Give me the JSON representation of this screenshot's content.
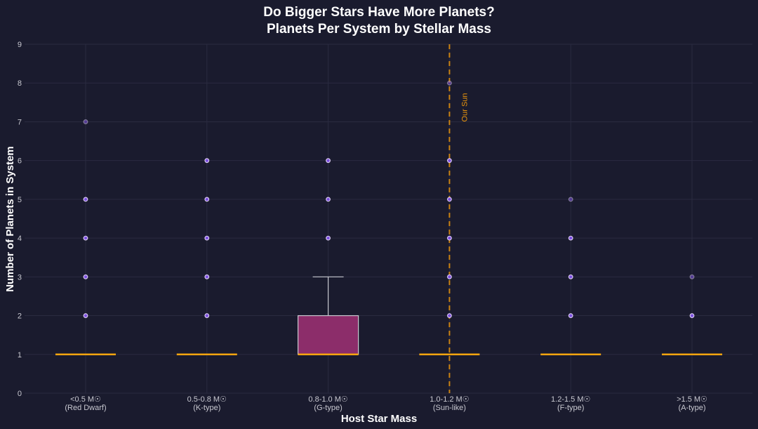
{
  "chart_data": {
    "type": "box",
    "title_lines": [
      "Do Bigger Stars Have More Planets?",
      "Planets Per System by Stellar Mass"
    ],
    "xlabel": "Host Star Mass",
    "ylabel": "Number of Planets in System",
    "ylim": [
      0,
      9
    ],
    "yticks": [
      "0",
      "1",
      "2",
      "3",
      "4",
      "5",
      "6",
      "7",
      "8",
      "9"
    ],
    "grid": true,
    "categories": [
      {
        "line1": "<0.5 M☉",
        "line2": "(Red Dwarf)"
      },
      {
        "line1": "0.5-0.8 M☉",
        "line2": "(K-type)"
      },
      {
        "line1": "0.8-1.0 M☉",
        "line2": "(G-type)"
      },
      {
        "line1": "1.0-1.2 M☉",
        "line2": "(Sun-like)"
      },
      {
        "line1": "1.2-1.5 M☉",
        "line2": "(F-type)"
      },
      {
        "line1": ">1.5 M☉",
        "line2": "(A-type)"
      }
    ],
    "boxes": [
      {
        "q1": 1,
        "median": 1,
        "q3": 1,
        "whisker_low": 1,
        "whisker_high": 1,
        "outliers": [
          2,
          3,
          4,
          5,
          7
        ],
        "faded": [
          7
        ]
      },
      {
        "q1": 1,
        "median": 1,
        "q3": 1,
        "whisker_low": 1,
        "whisker_high": 1,
        "outliers": [
          2,
          3,
          4,
          5,
          6
        ],
        "faded": []
      },
      {
        "q1": 1,
        "median": 1,
        "q3": 2,
        "whisker_low": 1,
        "whisker_high": 3,
        "outliers": [
          4,
          5,
          6
        ],
        "faded": []
      },
      {
        "q1": 1,
        "median": 1,
        "q3": 1,
        "whisker_low": 1,
        "whisker_high": 1,
        "outliers": [
          2,
          3,
          4,
          5,
          6,
          8
        ],
        "faded": [
          8
        ]
      },
      {
        "q1": 1,
        "median": 1,
        "q3": 1,
        "whisker_low": 1,
        "whisker_high": 1,
        "outliers": [
          2,
          3,
          4,
          5
        ],
        "faded": [
          5
        ]
      },
      {
        "q1": 1,
        "median": 1,
        "q3": 1,
        "whisker_low": 1,
        "whisker_high": 1,
        "outliers": [
          2,
          3
        ],
        "faded": [
          3
        ]
      }
    ],
    "reference_line": {
      "category_index": 3,
      "label": "Our Sun",
      "color": "#e8940c"
    },
    "colors": {
      "box_fill": "#8c2d6a",
      "box_edge": "#c8c8d0",
      "median": "#f5a40f",
      "outlier_fill": "#7b4fe0",
      "outlier_edge": "#d8c8f0",
      "grid": "#2a2b40"
    }
  }
}
